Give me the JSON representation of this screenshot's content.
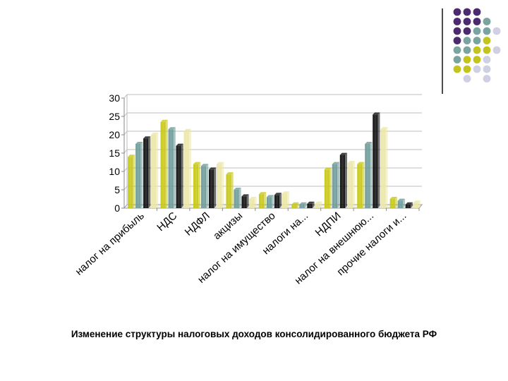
{
  "caption": "Изменение структуры налоговых доходов консолидированного бюджета РФ",
  "decoration": {
    "colors": {
      "purple": "#4b2a6e",
      "teal": "#7aa4a0",
      "olive": "#c4c41e",
      "lavender": "#cfd0e4"
    },
    "rows": [
      [
        "purple",
        "purple",
        "purple",
        null,
        null
      ],
      [
        "purple",
        "purple",
        "purple",
        "teal",
        null
      ],
      [
        "purple",
        "purple",
        "teal",
        "teal",
        "lavender"
      ],
      [
        "purple",
        "teal",
        "teal",
        "olive",
        null
      ],
      [
        "teal",
        "teal",
        "olive",
        "olive",
        "lavender"
      ],
      [
        "teal",
        "olive",
        "olive",
        "lavender",
        null
      ],
      [
        "olive",
        "olive",
        "lavender",
        "lavender",
        null
      ],
      [
        null,
        "lavender",
        null,
        "lavender",
        null
      ]
    ]
  },
  "chart_data": {
    "type": "bar",
    "title": "",
    "xlabel": "",
    "ylabel": "",
    "ylim": [
      0,
      30
    ],
    "yticks": [
      0,
      5,
      10,
      15,
      20,
      25,
      30
    ],
    "grid": true,
    "legend": "none",
    "categories": [
      "налог на прибыль",
      "НДС",
      "НДФЛ",
      "акцизы",
      "налог на имущество",
      "налоги на...",
      "НДПИ",
      "налог на внешнюю...",
      "прочие налоги и..."
    ],
    "series": [
      {
        "color": "#c8c81a",
        "values": [
          14,
          23.5,
          12,
          9.2,
          3.8,
          1,
          10.5,
          12,
          2.5
        ]
      },
      {
        "color": "#6f9c9a",
        "values": [
          17.5,
          21.5,
          11.5,
          5,
          3,
          1,
          12,
          17.5,
          2
        ]
      },
      {
        "color": "#111111",
        "values": [
          19,
          17,
          10.5,
          3.2,
          3.6,
          1.2,
          14.5,
          25.5,
          1
        ]
      },
      {
        "color": "#ece7a8",
        "values": [
          20,
          21,
          12,
          2.5,
          4,
          1.2,
          12.3,
          21.5,
          1.5
        ]
      }
    ]
  }
}
